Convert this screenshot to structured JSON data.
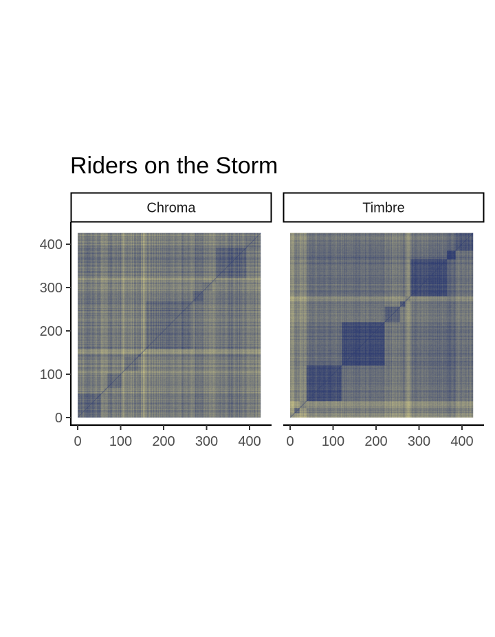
{
  "chart_data": {
    "type": "heatmap",
    "title": "Riders on the Storm",
    "xlabel": "",
    "ylabel": "",
    "xlim": [
      0,
      430
    ],
    "ylim": [
      0,
      430
    ],
    "x_ticks": [
      0,
      100,
      200,
      300,
      400
    ],
    "y_ticks": [
      0,
      100,
      200,
      300,
      400
    ],
    "grid": false,
    "legend": "none",
    "color_scale": {
      "low": "#2f3d72",
      "high": "#f3e68a",
      "meaning": "self-similarity matrix, dark = similar, light = dissimilar"
    },
    "panels": [
      {
        "name": "Chroma",
        "n": 426,
        "segments": [
          0,
          55,
          62,
          68,
          102,
          108,
          140,
          147,
          152,
          158,
          268,
          292,
          312,
          322,
          392,
          426
        ],
        "segment_levels": [
          0.32,
          0.5,
          0.58,
          0.36,
          0.62,
          0.4,
          0.33,
          0.56,
          0.7,
          0.35,
          0.32,
          0.42,
          0.55,
          0.33,
          0.42
        ],
        "block_similarity": 0.25,
        "noise": 0.22
      },
      {
        "name": "Timbre",
        "n": 426,
        "segments": [
          0,
          10,
          22,
          38,
          120,
          220,
          256,
          268,
          280,
          365,
          385,
          426
        ],
        "segment_levels": [
          0.7,
          0.45,
          0.62,
          0.3,
          0.26,
          0.42,
          0.36,
          0.62,
          0.28,
          0.22,
          0.35
        ],
        "block_similarity": 0.55,
        "noise": 0.16
      }
    ]
  }
}
